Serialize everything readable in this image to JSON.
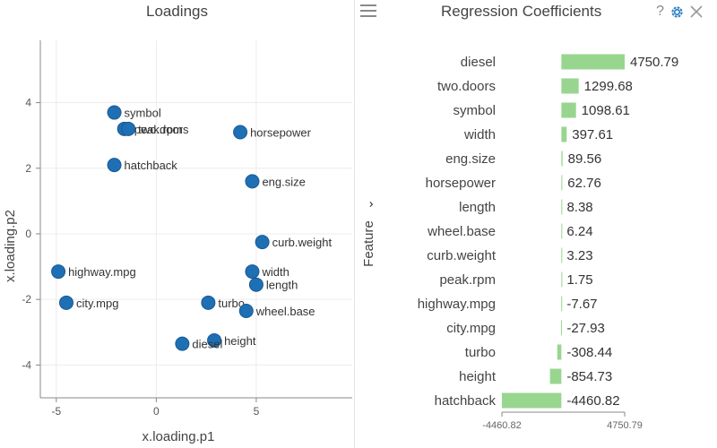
{
  "loadings": {
    "title": "Loadings"
  },
  "coefficients": {
    "title": "Regression Coefficients",
    "help_label": "?",
    "y_axis_label": "Feature",
    "y_axis_caret": "⌄"
  },
  "chart_data": [
    {
      "type": "scatter",
      "title": "Loadings",
      "xlabel": "x.loading.p1",
      "ylabel": "x.loading.p2",
      "xlim": [
        -5.8,
        9.8
      ],
      "ylim": [
        -5.0,
        5.9
      ],
      "xticks": [
        -5,
        0,
        5
      ],
      "yticks": [
        -4,
        -2,
        0,
        2,
        4
      ],
      "point_color": "#1f6fb4",
      "points": [
        {
          "label": "symbol",
          "x": -2.1,
          "y": 3.7
        },
        {
          "label": "peak.rpm",
          "x": -1.6,
          "y": 3.2
        },
        {
          "label": "two.doors",
          "x": -1.4,
          "y": 3.2
        },
        {
          "label": "horsepower",
          "x": 4.2,
          "y": 3.1
        },
        {
          "label": "hatchback",
          "x": -2.1,
          "y": 2.1
        },
        {
          "label": "eng.size",
          "x": 4.8,
          "y": 1.6
        },
        {
          "label": "curb.weight",
          "x": 5.3,
          "y": -0.25
        },
        {
          "label": "highway.mpg",
          "x": -4.9,
          "y": -1.15
        },
        {
          "label": "width",
          "x": 4.8,
          "y": -1.15
        },
        {
          "label": "length",
          "x": 5.0,
          "y": -1.55
        },
        {
          "label": "city.mpg",
          "x": -4.5,
          "y": -2.1
        },
        {
          "label": "turbo",
          "x": 2.6,
          "y": -2.1
        },
        {
          "label": "wheel.base",
          "x": 4.5,
          "y": -2.35
        },
        {
          "label": "height",
          "x": 2.9,
          "y": -3.25
        },
        {
          "label": "diesel",
          "x": 1.3,
          "y": -3.35
        }
      ]
    },
    {
      "type": "bar",
      "orientation": "horizontal",
      "title": "Regression Coefficients",
      "ylabel": "Feature",
      "xlim": [
        -4460.82,
        4750.79
      ],
      "xticks": [
        -4460.82,
        4750.79
      ],
      "xtick_labels": [
        "-4460.82",
        "4750.79"
      ],
      "bar_color": "#98d68f",
      "categories": [
        "diesel",
        "two.doors",
        "symbol",
        "width",
        "eng.size",
        "horsepower",
        "length",
        "wheel.base",
        "curb.weight",
        "peak.rpm",
        "highway.mpg",
        "city.mpg",
        "turbo",
        "height",
        "hatchback"
      ],
      "values": [
        4750.79,
        1299.68,
        1098.61,
        397.61,
        89.56,
        62.76,
        8.38,
        6.24,
        3.23,
        1.75,
        -7.67,
        -27.93,
        -308.44,
        -854.73,
        -4460.82
      ],
      "value_labels": [
        "4750.79",
        "1299.68",
        "1098.61",
        "397.61",
        "89.56",
        "62.76",
        "8.38",
        "6.24",
        "3.23",
        "1.75",
        "-7.67",
        "-27.93",
        "-308.44",
        "-854.73",
        "-4460.82"
      ]
    }
  ]
}
